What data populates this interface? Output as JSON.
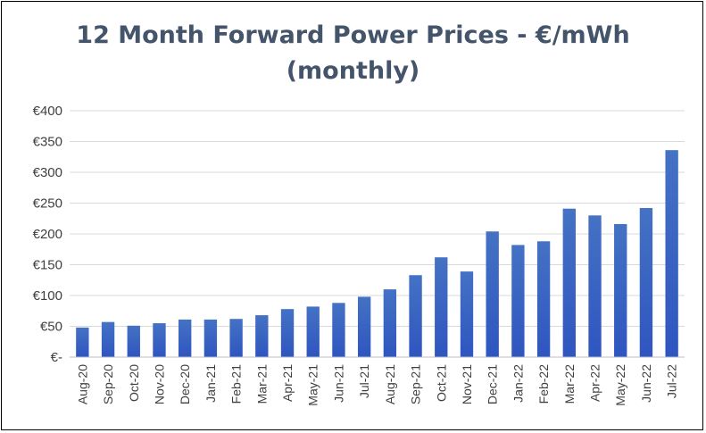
{
  "chart_data": {
    "type": "bar",
    "title_lines": [
      "12 Month Forward Power Prices - €/mWh",
      "(monthly)"
    ],
    "categories": [
      "Aug-20",
      "Sep-20",
      "Oct-20",
      "Nov-20",
      "Dec-20",
      "Jan-21",
      "Feb-21",
      "Mar-21",
      "Apr-21",
      "May-21",
      "Jun-21",
      "Jul-21",
      "Aug-21",
      "Sep-21",
      "Oct-21",
      "Nov-21",
      "Dec-21",
      "Jan-22",
      "Feb-22",
      "Mar-22",
      "Apr-22",
      "May-22",
      "Jun-22",
      "Jul-22"
    ],
    "values": [
      48,
      57,
      51,
      55,
      61,
      61,
      62,
      68,
      78,
      82,
      88,
      98,
      110,
      133,
      162,
      139,
      204,
      182,
      188,
      241,
      230,
      216,
      242,
      336
    ],
    "y_tick_labels": [
      "€-",
      "€50",
      "€100",
      "€150",
      "€200",
      "€250",
      "€300",
      "€350",
      "€400"
    ],
    "y_ticks": [
      0,
      50,
      100,
      150,
      200,
      250,
      300,
      350,
      400
    ],
    "ylim": [
      0,
      400
    ],
    "grid": true,
    "legend": "none",
    "colors": {
      "bar_top": "#4472C4",
      "bar_bottom": "#2F55C0",
      "grid": "#D9D9D9",
      "title": "#44546A",
      "text": "#404040"
    }
  }
}
